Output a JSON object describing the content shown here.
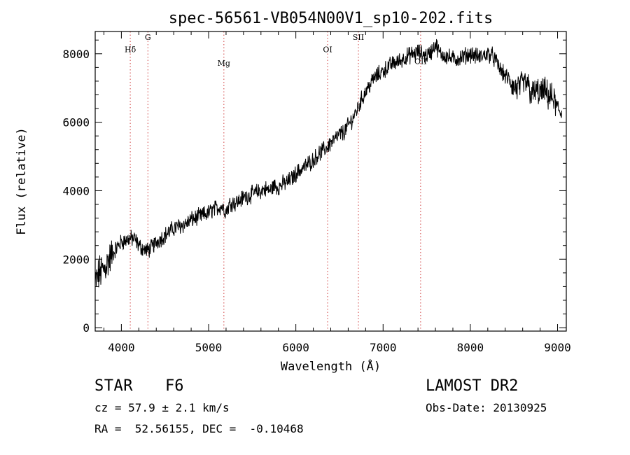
{
  "chart_data": {
    "type": "line",
    "title": "spec-56561-VB054N00V1_sp10-202.fits",
    "xlabel": "Wavelength (Å)",
    "ylabel": "Flux (relative)",
    "xlim": [
      3700,
      9100
    ],
    "ylim": [
      -100,
      8650
    ],
    "x_ticks": [
      4000,
      5000,
      6000,
      7000,
      8000,
      9000
    ],
    "y_ticks": [
      0,
      2000,
      4000,
      6000,
      8000
    ],
    "grid": false,
    "series": [
      {
        "x": [
          3700,
          3750,
          3800,
          3850,
          3900,
          3950,
          4000,
          4050,
          4100,
          4150,
          4200,
          4250,
          4300,
          4350,
          4400,
          4450,
          4500,
          4550,
          4600,
          4650,
          4700,
          4750,
          4800,
          4850,
          4900,
          4950,
          5000,
          5050,
          5100,
          5150,
          5200,
          5250,
          5300,
          5350,
          5400,
          5450,
          5500,
          5550,
          5600,
          5650,
          5700,
          5750,
          5800,
          5850,
          5900,
          5950,
          6000,
          6050,
          6100,
          6150,
          6200,
          6250,
          6300,
          6350,
          6400,
          6450,
          6500,
          6550,
          6600,
          6650,
          6700,
          6750,
          6800,
          6850,
          6900,
          6950,
          7000,
          7050,
          7100,
          7150,
          7200,
          7250,
          7300,
          7350,
          7400,
          7450,
          7500,
          7550,
          7600,
          7650,
          7700,
          7750,
          7800,
          7850,
          7900,
          7950,
          8000,
          8050,
          8100,
          8150,
          8200,
          8250,
          8300,
          8350,
          8400,
          8450,
          8500,
          8550,
          8600,
          8650,
          8700,
          8750,
          8800,
          8850,
          8900,
          8950,
          9000,
          9050
        ],
        "y": [
          1300,
          1600,
          1700,
          1950,
          2150,
          2350,
          2500,
          2550,
          2600,
          2600,
          2400,
          2300,
          2250,
          2350,
          2500,
          2600,
          2700,
          2800,
          2900,
          2950,
          3000,
          3050,
          3150,
          3200,
          3250,
          3300,
          3350,
          3450,
          3500,
          3550,
          3400,
          3650,
          3650,
          3700,
          3800,
          3850,
          3900,
          3950,
          4000,
          4050,
          4000,
          4150,
          4100,
          4200,
          4250,
          4350,
          4500,
          4600,
          4700,
          4800,
          4900,
          5050,
          5150,
          5250,
          5400,
          5500,
          5650,
          5700,
          5900,
          6100,
          6350,
          6650,
          6900,
          7100,
          7300,
          7400,
          7500,
          7600,
          7700,
          7750,
          7800,
          7900,
          7950,
          8000,
          8050,
          8000,
          7950,
          8050,
          8300,
          8000,
          7950,
          7900,
          7850,
          7850,
          7900,
          7950,
          8000,
          7950,
          7900,
          7950,
          8000,
          7950,
          7750,
          7500,
          7350,
          7250,
          7000,
          7000,
          7100,
          7150,
          6800,
          6900,
          6850,
          6900,
          6750,
          6700,
          6350,
          6300
        ]
      }
    ],
    "annotations": [
      {
        "label": "Hδ",
        "wavelength": 4102,
        "label_flux": 8050
      },
      {
        "label": "G",
        "wavelength": 4304,
        "label_flux": 8400
      },
      {
        "label": "Mg",
        "wavelength": 5175,
        "label_flux": 7650
      },
      {
        "label": "OI",
        "wavelength": 6364,
        "label_flux": 8050
      },
      {
        "label": "SII",
        "wavelength": 6717,
        "label_flux": 8400
      },
      {
        "label": "OII",
        "wavelength": 7430,
        "label_flux": 7700
      }
    ]
  },
  "info": {
    "class": "STAR",
    "subclass": "F6",
    "survey": "LAMOST DR2",
    "cz": "cz = 57.9 ± 2.1 km/s",
    "obs_date": "Obs-Date: 20130925",
    "radec": "RA =  52.56155, DEC =  -0.10468"
  }
}
